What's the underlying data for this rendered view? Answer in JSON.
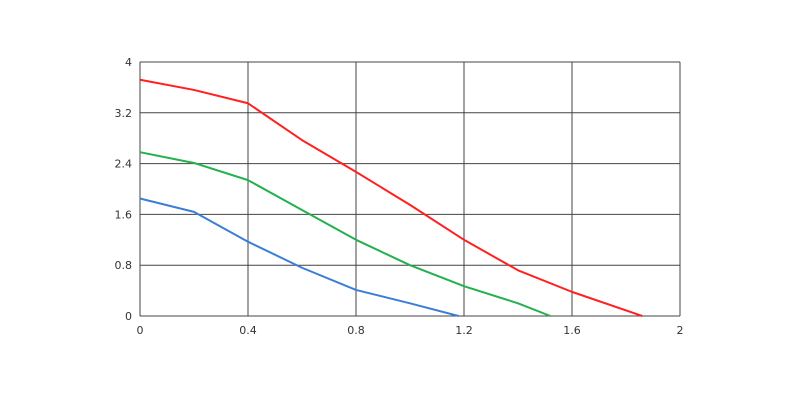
{
  "chart_data": {
    "type": "line",
    "x": [
      0,
      0.2,
      0.4,
      0.6,
      0.8,
      1.0,
      1.2,
      1.4,
      1.52,
      1.6,
      1.86,
      1.18
    ],
    "series": [
      {
        "color": "#ff2020",
        "x": [
          0,
          0.2,
          0.4,
          0.6,
          0.8,
          1.0,
          1.2,
          1.4,
          1.6,
          1.86
        ],
        "values": [
          3.72,
          3.56,
          3.35,
          2.77,
          2.27,
          1.75,
          1.2,
          0.72,
          0.38,
          0
        ]
      },
      {
        "color": "#22b14c",
        "x": [
          0,
          0.2,
          0.4,
          0.6,
          0.8,
          1.0,
          1.2,
          1.4,
          1.52
        ],
        "values": [
          2.58,
          2.41,
          2.14,
          1.67,
          1.2,
          0.8,
          0.47,
          0.2,
          0
        ]
      },
      {
        "color": "#3a7fd5",
        "x": [
          0,
          0.2,
          0.4,
          0.6,
          0.8,
          1.0,
          1.18
        ],
        "values": [
          1.85,
          1.64,
          1.17,
          0.76,
          0.41,
          0.2,
          0
        ]
      }
    ],
    "xlim": [
      0,
      2
    ],
    "xticks": [
      0,
      0.4,
      0.8,
      1.2,
      1.6,
      2
    ],
    "ylim": [
      0,
      4
    ],
    "yticks": [
      0,
      0.8,
      1.6,
      2.4,
      3.2,
      4
    ],
    "grid": true
  }
}
